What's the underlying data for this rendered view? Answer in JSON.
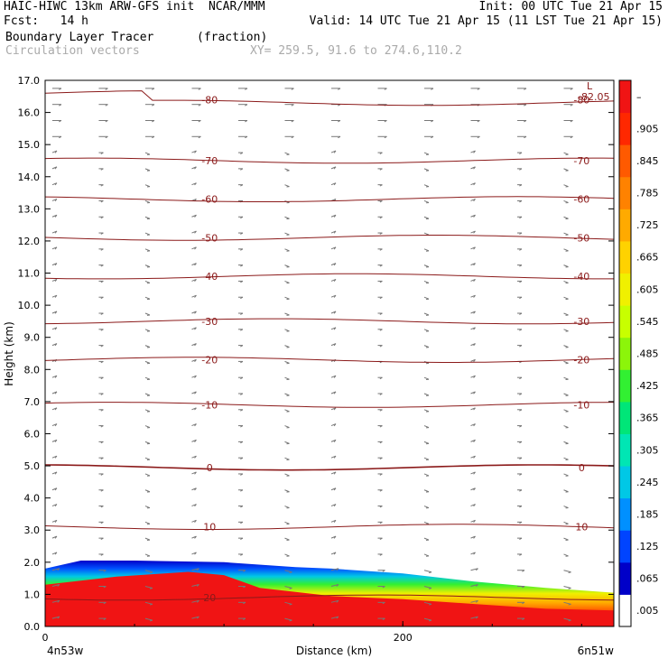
{
  "header": {
    "title_left": "HAIC-HIWC 13km ARW-GFS init  NCAR/MMM",
    "init": "Init: 00 UTC Tue 21 Apr 15",
    "fcst": "Fcst:   14 h",
    "valid": "Valid: 14 UTC Tue 21 Apr 15 (11 LST Tue 21 Apr 15)",
    "field_name": "Boundary Layer Tracer",
    "field_units": "(fraction)",
    "vector_name": "Circulation vectors",
    "xy_info": "XY= 259.5, 91.6 to 274.6,110.2"
  },
  "chart_data": {
    "type": "area",
    "title": "Boundary Layer Tracer",
    "xlabel": "Distance (km)",
    "ylabel": "Height (km)",
    "x_tick_labels": [
      "0",
      "200"
    ],
    "x_end_labels": [
      "4n53w",
      "6n51w"
    ],
    "y_ticks": [
      0.0,
      1.0,
      2.0,
      3.0,
      4.0,
      5.0,
      6.0,
      7.0,
      8.0,
      9.0,
      10.0,
      11.0,
      12.0,
      13.0,
      14.0,
      15.0,
      16.0,
      17.0
    ],
    "y_tick_labels": [
      "0.0",
      "1.0",
      "2.0",
      "3.0",
      "4.0",
      "5.0",
      "6.0",
      "7.0",
      "8.0",
      "9.0",
      "10.0",
      "11.0",
      "12.0",
      "13.0",
      "14.0",
      "15.0",
      "16.0",
      "17.0"
    ],
    "xlim": [
      0,
      318
    ],
    "ylim": [
      0,
      17
    ],
    "boundary_layer_top": {
      "x": [
        0,
        20,
        50,
        100,
        140,
        160,
        200,
        240,
        280,
        318
      ],
      "y": [
        1.8,
        2.05,
        2.05,
        2.0,
        1.85,
        1.8,
        1.65,
        1.4,
        1.2,
        1.05
      ]
    },
    "red_core_top": {
      "x": [
        0,
        40,
        80,
        100,
        120,
        160,
        200,
        240,
        280,
        318
      ],
      "y": [
        1.3,
        1.55,
        1.7,
        1.6,
        1.2,
        0.95,
        0.85,
        0.7,
        0.55,
        0.5
      ]
    },
    "isotherms": [
      {
        "label": "-80",
        "y": 16.4
      },
      {
        "label": "-70",
        "y": 14.5
      },
      {
        "label": "-60",
        "y": 13.3
      },
      {
        "label": "-50",
        "y": 12.1
      },
      {
        "label": "-40",
        "y": 10.9
      },
      {
        "label": "-30",
        "y": 9.5
      },
      {
        "label": "-20",
        "y": 8.3
      },
      {
        "label": "-10",
        "y": 6.9
      },
      {
        "label": "0",
        "y": 4.95
      },
      {
        "label": "10",
        "y": 3.1
      },
      {
        "label": "20",
        "y": 0.9
      }
    ],
    "contour_min_label": "L",
    "contour_min_value": "-82.05",
    "colorbar": {
      "labels": [
        ".005",
        ".065",
        ".125",
        ".185",
        ".245",
        ".305",
        ".365",
        ".425",
        ".485",
        ".545",
        ".605",
        ".665",
        ".725",
        ".785",
        ".845",
        ".905",
        "–"
      ],
      "colors": [
        "#ffffff",
        "#0000c8",
        "#0044ff",
        "#0090ff",
        "#00c8e6",
        "#00e6b4",
        "#00e678",
        "#32f032",
        "#8cf50a",
        "#c8ff00",
        "#f0f000",
        "#ffd200",
        "#ffaa00",
        "#ff8200",
        "#ff5a00",
        "#ff2800",
        "#f01414"
      ]
    },
    "grid": false,
    "colors": {
      "contour": "#8b1a1a",
      "vector": "#777777",
      "axis": "#000000"
    }
  }
}
